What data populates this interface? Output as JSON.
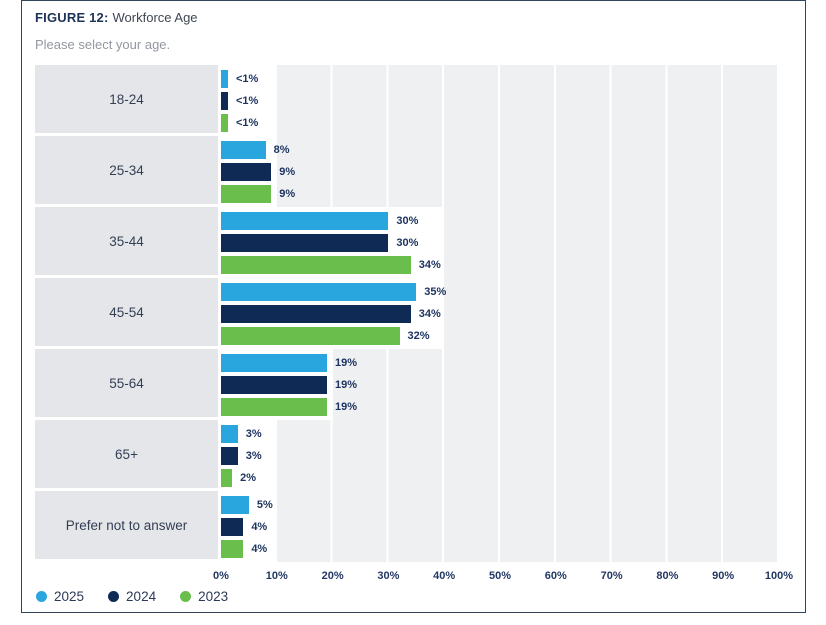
{
  "header": {
    "figure_label": "FIGURE 12:",
    "title": "Workforce Age",
    "subtitle": "Please select your age."
  },
  "chart_data": {
    "type": "bar",
    "orientation": "horizontal",
    "title": "Workforce Age",
    "categories": [
      "18-24",
      "25-34",
      "35-44",
      "45-54",
      "55-64",
      "65+",
      "Prefer not to answer"
    ],
    "series": [
      {
        "name": "2025",
        "color": "#2aa6de",
        "values": [
          0.5,
          8,
          30,
          35,
          19,
          3,
          5
        ],
        "labels": [
          "<1%",
          "8%",
          "30%",
          "35%",
          "19%",
          "3%",
          "5%"
        ]
      },
      {
        "name": "2024",
        "color": "#0e2a55",
        "values": [
          0.5,
          9,
          30,
          34,
          19,
          3,
          4
        ],
        "labels": [
          "<1%",
          "9%",
          "30%",
          "34%",
          "19%",
          "3%",
          "4%"
        ]
      },
      {
        "name": "2023",
        "color": "#6abe4c",
        "values": [
          0.5,
          9,
          34,
          32,
          19,
          2,
          4
        ],
        "labels": [
          "<1%",
          "9%",
          "34%",
          "32%",
          "19%",
          "2%",
          "4%"
        ]
      }
    ],
    "x_axis": {
      "min": 0,
      "max": 100,
      "ticks": [
        "0%",
        "10%",
        "20%",
        "30%",
        "40%",
        "50%",
        "60%",
        "70%",
        "80%",
        "90%",
        "100%"
      ]
    },
    "legend": [
      {
        "label": "2025",
        "color": "#2aa6de"
      },
      {
        "label": "2024",
        "color": "#0e2a55"
      },
      {
        "label": "2023",
        "color": "#6abe4c"
      }
    ],
    "legend_position": "bottom-left",
    "grid": true
  }
}
